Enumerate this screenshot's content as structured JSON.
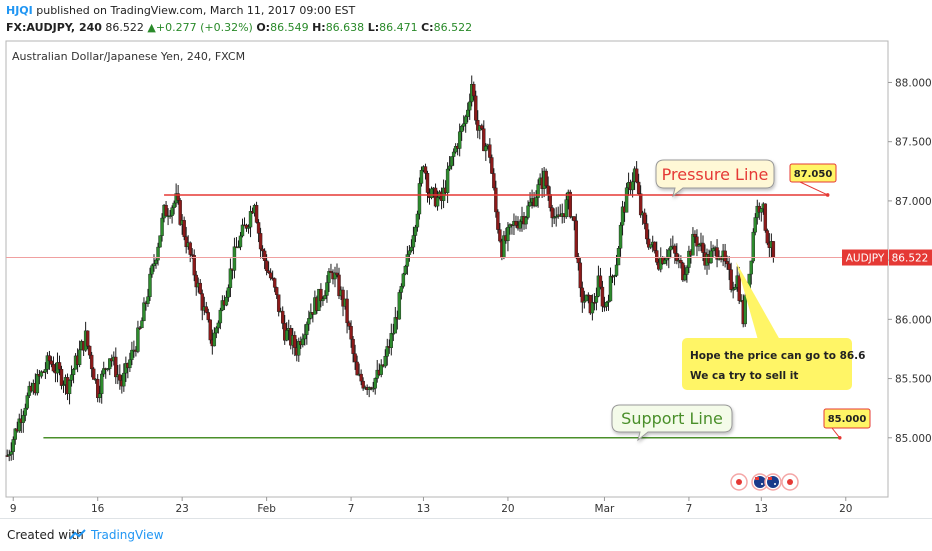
{
  "header": {
    "user": "HJQI",
    "published": "published on TradingView.com, March 11, 2017 09:00 EST",
    "symbol": "FX:AUDJPY, 240",
    "last": "86.522",
    "change": "+0.277 (+0.32%)",
    "open_label": "O:",
    "open": "86.549",
    "high_label": "H:",
    "high": "86.638",
    "low_label": "L:",
    "low": "86.471",
    "close_label": "C:",
    "close": "86.522"
  },
  "chart_data": {
    "type": "candlestick",
    "title": "Australian Dollar/Japanese Yen, 240, FXCM",
    "y_ticks": [
      "88.000",
      "87.500",
      "87.000",
      "86.500",
      "86.000",
      "85.500",
      "85.000"
    ],
    "y_tick_values": [
      88.0,
      87.5,
      87.0,
      86.5,
      86.0,
      85.5,
      85.0
    ],
    "ylim": [
      84.5,
      88.35
    ],
    "x_ticks": [
      "9",
      "16",
      "23",
      "Feb",
      "7",
      "13",
      "20",
      "Mar",
      "7",
      "13",
      "20"
    ],
    "x_tick_days": [
      9,
      16,
      23,
      30,
      37,
      43,
      50,
      58,
      65,
      71,
      78
    ],
    "xlim": [
      8.4,
      81.5
    ],
    "last_price_label": "AUDJPY",
    "last_price": 86.522,
    "price_path": [
      [
        8.5,
        84.85
      ],
      [
        10,
        85.3
      ],
      [
        12,
        85.65
      ],
      [
        13.5,
        85.45
      ],
      [
        15,
        85.85
      ],
      [
        16,
        85.4
      ],
      [
        17,
        85.7
      ],
      [
        18,
        85.45
      ],
      [
        19.5,
        85.9
      ],
      [
        20.5,
        86.4
      ],
      [
        21.5,
        86.9
      ],
      [
        22.5,
        87.0
      ],
      [
        23.5,
        86.6
      ],
      [
        24.5,
        86.2
      ],
      [
        25.5,
        85.8
      ],
      [
        26.5,
        86.2
      ],
      [
        27.5,
        86.6
      ],
      [
        28.5,
        86.85
      ],
      [
        29,
        87.02
      ],
      [
        29.5,
        86.6
      ],
      [
        30.5,
        86.3
      ],
      [
        31.5,
        85.9
      ],
      [
        32.5,
        85.75
      ],
      [
        33.5,
        86.05
      ],
      [
        34.5,
        86.2
      ],
      [
        35.5,
        86.4
      ],
      [
        36.5,
        86.1
      ],
      [
        37.5,
        85.5
      ],
      [
        38.5,
        85.45
      ],
      [
        39.5,
        85.55
      ],
      [
        40.5,
        85.9
      ],
      [
        41.5,
        86.4
      ],
      [
        42.5,
        86.95
      ],
      [
        43,
        87.35
      ],
      [
        43.5,
        87.05
      ],
      [
        44.5,
        87.0
      ],
      [
        45.5,
        87.4
      ],
      [
        46.5,
        87.7
      ],
      [
        47,
        88.0
      ],
      [
        47.5,
        87.6
      ],
      [
        48.5,
        87.4
      ],
      [
        49,
        86.9
      ],
      [
        49.5,
        86.6
      ],
      [
        50.5,
        86.8
      ],
      [
        51.5,
        86.9
      ],
      [
        52.5,
        87.1
      ],
      [
        53,
        87.2
      ],
      [
        54,
        86.8
      ],
      [
        55,
        87.0
      ],
      [
        55.5,
        86.8
      ],
      [
        56,
        86.2
      ],
      [
        57,
        86.1
      ],
      [
        57.5,
        86.3
      ],
      [
        58,
        86.1
      ],
      [
        59,
        86.5
      ],
      [
        59.5,
        86.9
      ],
      [
        60,
        87.1
      ],
      [
        60.5,
        87.25
      ],
      [
        61,
        86.9
      ],
      [
        61.5,
        86.7
      ],
      [
        62.5,
        86.5
      ],
      [
        63.5,
        86.6
      ],
      [
        64.5,
        86.4
      ],
      [
        65.5,
        86.7
      ],
      [
        66.5,
        86.5
      ],
      [
        67.5,
        86.6
      ],
      [
        68.5,
        86.3
      ],
      [
        69,
        86.35
      ],
      [
        69.5,
        86.0
      ],
      [
        70,
        86.4
      ],
      [
        70.5,
        86.9
      ],
      [
        71,
        87.0
      ],
      [
        71.5,
        86.7
      ],
      [
        72,
        86.52
      ]
    ],
    "resistance": {
      "label": "Pressure Line",
      "price": 87.05,
      "price_label": "87.050",
      "from_day": 21.5,
      "to_day": 76.5
    },
    "support": {
      "label": "Support Line",
      "price": 85.0,
      "price_label": "85.000",
      "from_day": 11.5,
      "to_day": 77.5
    },
    "note": {
      "line1": "Hope the price can go to 86.6",
      "line2": "We ca try to sell it"
    },
    "colors": {
      "up": "#2e8b2e",
      "down": "#8b1a1a",
      "resistance": "#e53935",
      "support": "#4a8f2a",
      "note_bg": "#fff566",
      "label_bg": "#fff566",
      "last_price": "#e53935"
    }
  },
  "footer": {
    "created": "Created with",
    "brand": "TradingView"
  },
  "events": [
    "JP",
    "AU",
    "AU",
    "JP"
  ]
}
